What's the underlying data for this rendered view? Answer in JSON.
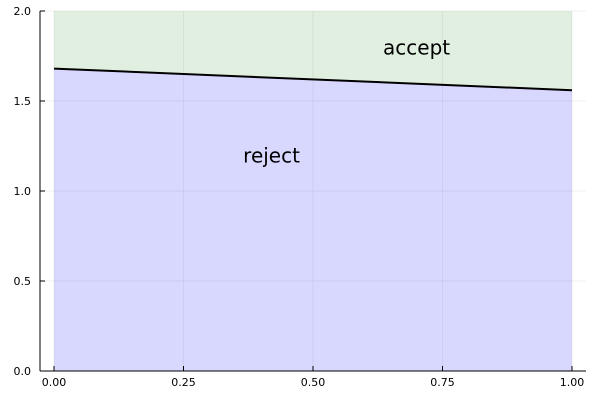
{
  "chart_data": {
    "type": "area",
    "title": "",
    "xlabel": "",
    "ylabel": "",
    "xlim": [
      0,
      1
    ],
    "ylim": [
      0,
      2
    ],
    "grid": true,
    "x_ticks": [
      0,
      0.25,
      0.5,
      0.75,
      1
    ],
    "x_tick_labels": [
      "0.00",
      "0.25",
      "0.50",
      "0.75",
      "1.00"
    ],
    "y_ticks": [
      0,
      0.5,
      1,
      1.5,
      2
    ],
    "y_tick_labels": [
      "0.0",
      "0.5",
      "1.0",
      "1.5",
      "2.0"
    ],
    "boundary": {
      "x": [
        0,
        1
      ],
      "y": [
        1.68,
        1.56
      ],
      "color": "#000000"
    },
    "regions": [
      {
        "label": "accept",
        "position": "above",
        "color": "#e0efe0",
        "label_at": [
          0.7,
          1.79
        ]
      },
      {
        "label": "reject",
        "position": "below",
        "color": "#d8d8ff",
        "label_at": [
          0.42,
          1.19
        ]
      }
    ]
  }
}
